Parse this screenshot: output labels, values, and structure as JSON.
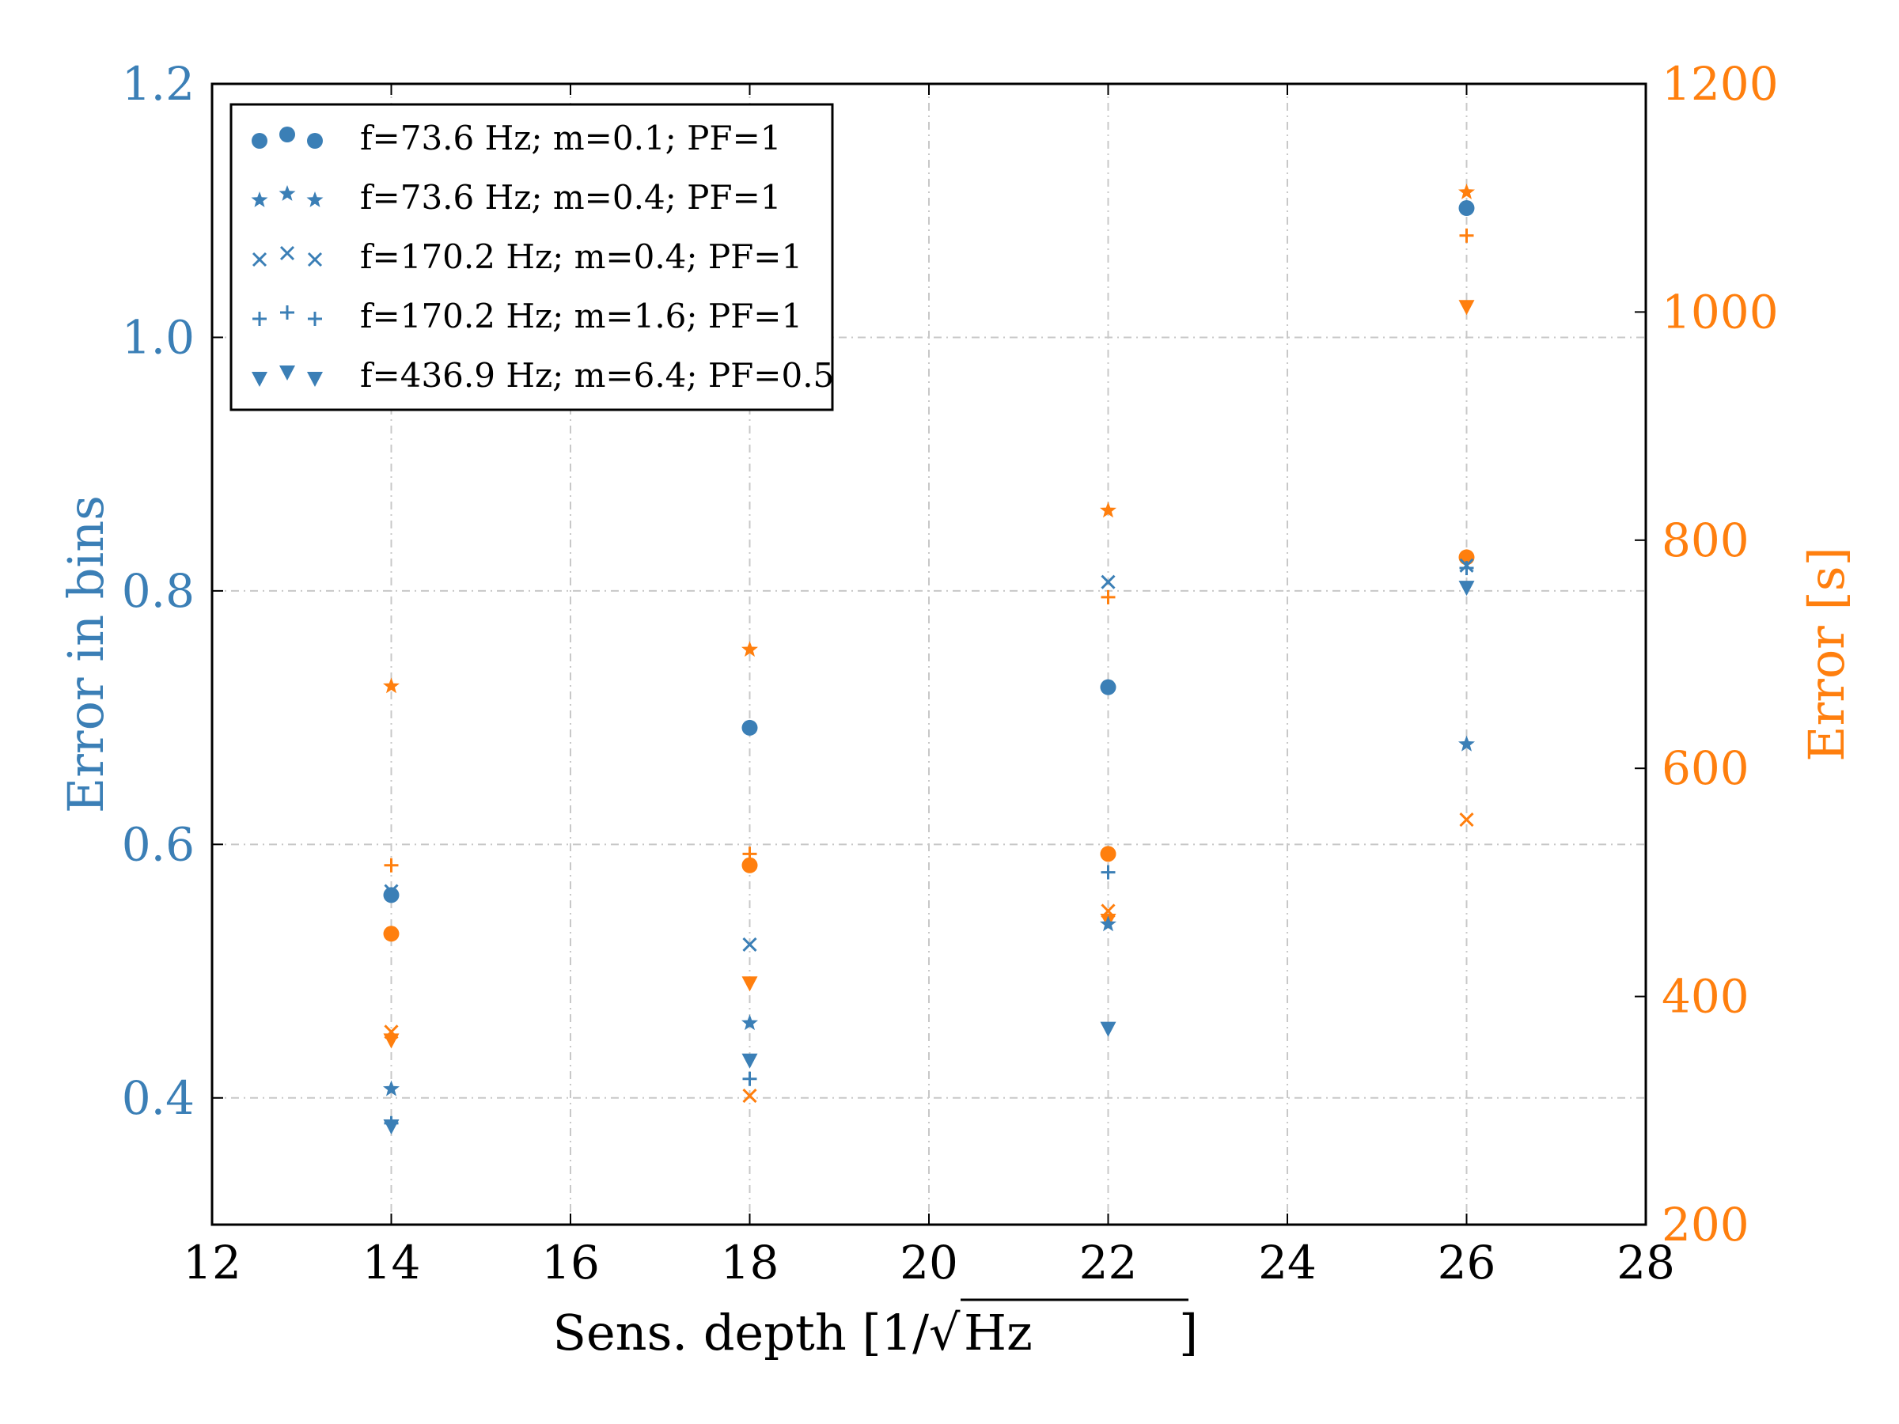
{
  "chart_data": {
    "type": "scatter",
    "colors": {
      "left": "#3b7fb6",
      "right": "#ff7f0e"
    },
    "grid": true,
    "legend_position": "top-left",
    "x_axis": {
      "label_prefix": "Sens. depth [1/",
      "label_radicand": "Hz",
      "label_suffix": "]",
      "range": [
        12,
        28
      ],
      "ticks": [
        12,
        14,
        16,
        18,
        20,
        22,
        24,
        26,
        28
      ],
      "tick_labels": [
        "12",
        "14",
        "16",
        "18",
        "20",
        "22",
        "24",
        "26",
        "28"
      ]
    },
    "y_left": {
      "label": "Error in bins",
      "range": [
        0.3,
        1.2
      ],
      "ticks": [
        0.4,
        0.6,
        0.8,
        1.0,
        1.2
      ],
      "tick_labels": [
        "0.4",
        "0.6",
        "0.8",
        "1.0",
        "1.2"
      ]
    },
    "y_right": {
      "label": "Error [s]",
      "range": [
        200,
        1200
      ],
      "ticks": [
        200,
        400,
        600,
        800,
        1000,
        1200
      ],
      "tick_labels": [
        "200",
        "400",
        "600",
        "800",
        "1000",
        "1200"
      ]
    },
    "series": [
      {
        "name": "f=73.6 Hz; m=0.1; PF=1",
        "marker": "circle",
        "x": [
          14,
          18,
          22,
          26
        ],
        "y_bins": [
          0.56,
          0.692,
          0.724,
          1.102
        ],
        "y_seconds": [
          455,
          515,
          525,
          785
        ]
      },
      {
        "name": "f=73.6 Hz; m=0.4; PF=1",
        "marker": "star",
        "x": [
          14,
          18,
          22,
          26
        ],
        "y_bins": [
          0.407,
          0.459,
          0.537,
          0.679
        ],
        "y_seconds": [
          672,
          704,
          826,
          1105
        ]
      },
      {
        "name": "f=170.2 Hz; m=0.4; PF=1",
        "marker": "x",
        "x": [
          14,
          18,
          22,
          26
        ],
        "y_bins": [
          0.563,
          0.521,
          0.807,
          0.82
        ],
        "y_seconds": [
          369,
          313,
          475,
          555
        ]
      },
      {
        "name": "f=170.2 Hz; m=1.6; PF=1",
        "marker": "plus",
        "x": [
          14,
          18,
          22,
          26
        ],
        "y_bins": [
          0.38,
          0.415,
          0.578,
          0.818
        ],
        "y_seconds": [
          515,
          525,
          750,
          1067
        ]
      },
      {
        "name": "f=436.9 Hz; m=6.4; PF=0.5",
        "marker": "triangle",
        "x": [
          14,
          18,
          22,
          26
        ],
        "y_bins": [
          0.378,
          0.43,
          0.455,
          0.803
        ],
        "y_seconds": [
          362,
          412,
          467,
          1005
        ]
      }
    ]
  }
}
